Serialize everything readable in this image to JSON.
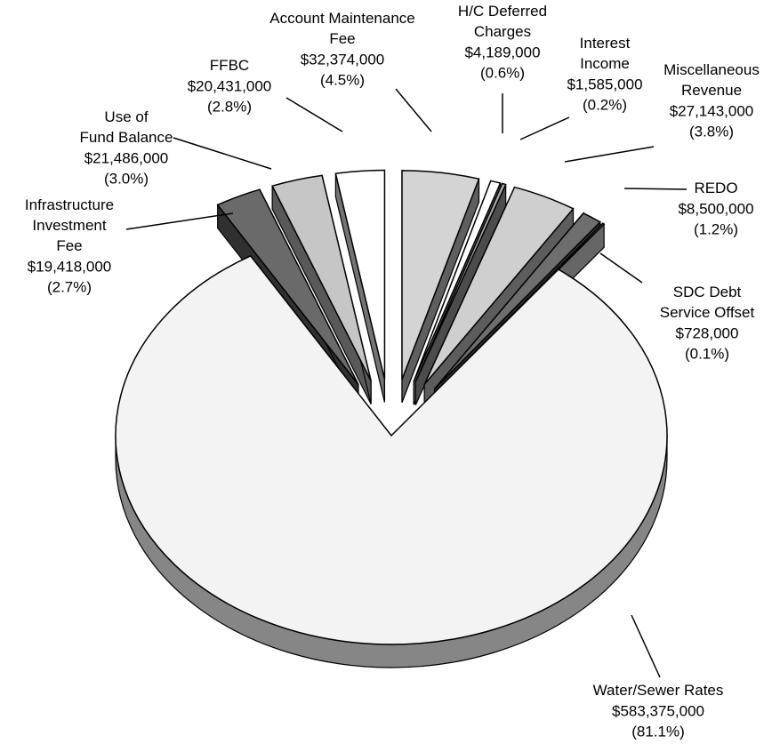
{
  "chart_data": {
    "type": "pie",
    "categories": [
      "Account Maintenance Fee",
      "H/C Deferred Charges",
      "Interest Income",
      "Miscellaneous Revenue",
      "REDO",
      "SDC Debt Service Offset",
      "Water/Sewer Rates",
      "Infrastructure Investment Fee",
      "Use of Fund Balance",
      "FFBC"
    ],
    "values": [
      32374000,
      4189000,
      1585000,
      27143000,
      8500000,
      728000,
      583375000,
      19418000,
      21486000,
      20431000
    ],
    "value_labels": [
      "$32,374,000",
      "$4,189,000",
      "$1,585,000",
      "$27,143,000",
      "$8,500,000",
      "$728,000",
      "$583,375,000",
      "$19,418,000",
      "$21,486,000",
      "$20,431,000"
    ],
    "percent_labels": [
      "(4.5%)",
      "(0.6%)",
      "(0.2%)",
      "(3.8%)",
      "(1.2%)",
      "(0.1%)",
      "(81.1%)",
      "(2.7%)",
      "(3.0%)",
      "(2.8%)"
    ],
    "colors": [
      "#d4d4d4",
      "#ffffff",
      "#a8a8a8",
      "#cfcfcf",
      "#6e6e6e",
      "#e2e2e2",
      "#f3f3f3",
      "#6a6a6a",
      "#c6c6c6",
      "#ffffff"
    ]
  }
}
